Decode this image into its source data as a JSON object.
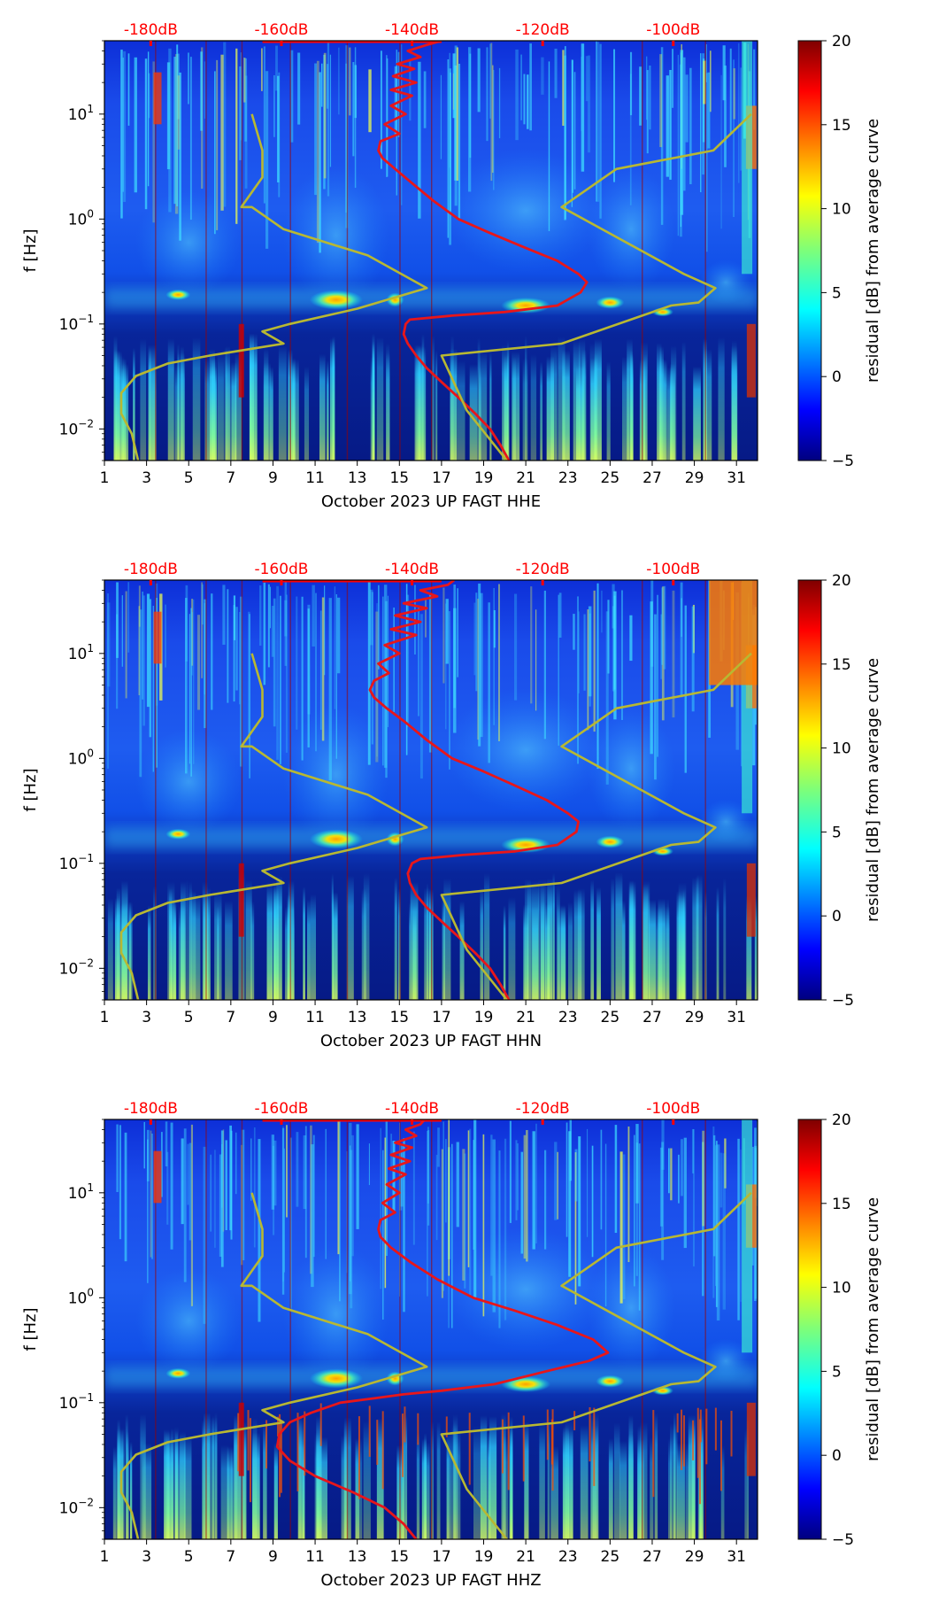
{
  "chart_data": [
    {
      "type": "heatmap",
      "xlabel": "October 2023 UP FAGT  HHE",
      "ylabel": "f [Hz]",
      "x_ticks": [
        "1",
        "3",
        "5",
        "7",
        "9",
        "11",
        "13",
        "15",
        "17",
        "19",
        "21",
        "23",
        "25",
        "27",
        "29",
        "31"
      ],
      "y_ticks": [
        "10^-2",
        "10^-1",
        "10^0",
        "10^1"
      ],
      "xlim": [
        1,
        32
      ],
      "ylim": [
        0.005,
        50
      ],
      "y_scale": "log",
      "top_axis_ticks": [
        "-180dB",
        "-160dB",
        "-140dB",
        "-120dB",
        "-100dB"
      ],
      "top_axis_color": "#ff0000",
      "colorbar": {
        "label": "residual [dB] from average curve",
        "ticks": [
          "20",
          "15",
          "10",
          "5",
          "0",
          "−5"
        ],
        "range": [
          -5,
          20
        ],
        "colormap": "jet"
      },
      "series": [
        {
          "color": "#e8161a",
          "x": [
            20.2,
            19.8,
            19.3,
            18.6,
            17.8,
            17.0,
            16.3,
            15.8,
            15.4,
            15.2,
            15.3,
            15.5,
            17.5,
            20.0,
            22.5,
            23.6,
            23.9,
            23.5,
            22.5,
            20.8,
            19.2,
            17.8,
            16.6,
            15.6,
            14.8,
            14.2,
            14.0,
            14.1,
            15.0,
            14.3,
            15.3,
            14.6,
            15.6,
            14.6,
            15.8,
            14.7,
            15.7,
            14.9,
            16.0,
            15.4,
            16.2,
            17.0
          ],
          "y": [
            0.005,
            0.007,
            0.01,
            0.014,
            0.02,
            0.028,
            0.038,
            0.05,
            0.065,
            0.08,
            0.1,
            0.11,
            0.12,
            0.13,
            0.15,
            0.2,
            0.25,
            0.3,
            0.4,
            0.55,
            0.75,
            1.0,
            1.5,
            2.2,
            3.0,
            3.8,
            4.5,
            5.5,
            6.5,
            8.0,
            10.0,
            12.0,
            15.0,
            17.0,
            20.0,
            23.0,
            27.0,
            30.0,
            35.0,
            40.0,
            45.0,
            50.0
          ]
        },
        {
          "color": "#b8b832",
          "x": [
            2.6,
            2.3,
            1.8,
            1.8,
            2.5,
            4.0,
            6.0,
            9.5,
            8.5,
            9.8,
            13.0,
            16.3,
            13.5,
            9.5,
            8.0,
            7.5,
            8.5,
            8.5,
            8.0,
            20.1,
            18.2,
            17.0,
            22.7,
            27.9,
            29.2,
            30.0,
            28.5,
            22.7,
            25.3,
            29.9,
            31.7
          ],
          "y": [
            0.005,
            0.009,
            0.014,
            0.022,
            0.032,
            0.042,
            0.05,
            0.065,
            0.085,
            0.1,
            0.14,
            0.22,
            0.45,
            0.8,
            1.3,
            1.3,
            2.5,
            4.5,
            10.0,
            0.005,
            0.015,
            0.05,
            0.065,
            0.15,
            0.16,
            0.22,
            0.3,
            1.3,
            3.0,
            4.5,
            10.0
          ]
        }
      ]
    },
    {
      "type": "heatmap",
      "xlabel": "October 2023 UP FAGT  HHN",
      "ylabel": "f [Hz]",
      "x_ticks": [
        "1",
        "3",
        "5",
        "7",
        "9",
        "11",
        "13",
        "15",
        "17",
        "19",
        "21",
        "23",
        "25",
        "27",
        "29",
        "31"
      ],
      "y_ticks": [
        "10^-2",
        "10^-1",
        "10^0",
        "10^1"
      ],
      "xlim": [
        1,
        32
      ],
      "ylim": [
        0.005,
        50
      ],
      "y_scale": "log",
      "top_axis_ticks": [
        "-180dB",
        "-160dB",
        "-140dB",
        "-120dB",
        "-100dB"
      ],
      "top_axis_color": "#ff0000",
      "colorbar": {
        "label": "residual [dB] from average curve",
        "ticks": [
          "20",
          "15",
          "10",
          "5",
          "0",
          "−5"
        ],
        "range": [
          -5,
          20
        ],
        "colormap": "jet"
      },
      "series": [
        {
          "color": "#e8161a",
          "x": [
            20.2,
            19.8,
            19.3,
            18.6,
            17.8,
            17.0,
            16.3,
            15.8,
            15.5,
            15.4,
            15.6,
            16.0,
            18.0,
            20.5,
            22.5,
            23.4,
            23.5,
            23.0,
            22.0,
            20.5,
            19.0,
            17.5,
            16.3,
            15.3,
            14.4,
            13.8,
            13.6,
            13.8,
            14.5,
            14.0,
            15.0,
            14.3,
            15.8,
            14.6,
            16.0,
            14.8,
            16.3,
            15.2,
            16.8,
            16.0,
            17.3,
            17.6
          ],
          "y": [
            0.005,
            0.007,
            0.01,
            0.014,
            0.02,
            0.028,
            0.038,
            0.05,
            0.065,
            0.08,
            0.1,
            0.11,
            0.12,
            0.13,
            0.15,
            0.2,
            0.25,
            0.3,
            0.4,
            0.55,
            0.75,
            1.0,
            1.5,
            2.2,
            3.0,
            3.8,
            4.5,
            5.5,
            6.5,
            8.0,
            10.0,
            12.0,
            15.0,
            17.0,
            20.0,
            23.0,
            27.0,
            30.0,
            35.0,
            40.0,
            45.0,
            50.0
          ]
        },
        {
          "color": "#b8b832",
          "x": [
            2.6,
            2.3,
            1.8,
            1.8,
            2.5,
            4.0,
            6.0,
            9.5,
            8.5,
            9.8,
            13.0,
            16.3,
            13.5,
            9.5,
            8.0,
            7.5,
            8.5,
            8.5,
            8.0,
            20.1,
            18.2,
            17.0,
            22.7,
            27.9,
            29.2,
            30.0,
            28.5,
            22.7,
            25.3,
            29.9,
            31.7
          ],
          "y": [
            0.005,
            0.009,
            0.014,
            0.022,
            0.032,
            0.042,
            0.05,
            0.065,
            0.085,
            0.1,
            0.14,
            0.22,
            0.45,
            0.8,
            1.3,
            1.3,
            2.5,
            4.5,
            10.0,
            0.005,
            0.015,
            0.05,
            0.065,
            0.15,
            0.16,
            0.22,
            0.3,
            1.3,
            3.0,
            4.5,
            10.0
          ]
        }
      ]
    },
    {
      "type": "heatmap",
      "xlabel": "October 2023 UP FAGT  HHZ",
      "ylabel": "f [Hz]",
      "x_ticks": [
        "1",
        "3",
        "5",
        "7",
        "9",
        "11",
        "13",
        "15",
        "17",
        "19",
        "21",
        "23",
        "25",
        "27",
        "29",
        "31"
      ],
      "y_ticks": [
        "10^-2",
        "10^-1",
        "10^0",
        "10^1"
      ],
      "xlim": [
        1,
        32
      ],
      "ylim": [
        0.005,
        50
      ],
      "y_scale": "log",
      "top_axis_ticks": [
        "-180dB",
        "-160dB",
        "-140dB",
        "-120dB",
        "-100dB"
      ],
      "top_axis_color": "#ff0000",
      "colorbar": {
        "label": "residual [dB] from average curve",
        "ticks": [
          "20",
          "15",
          "10",
          "5",
          "0",
          "−5"
        ],
        "range": [
          -5,
          20
        ],
        "colormap": "jet"
      },
      "series": [
        {
          "color": "#e8161a",
          "x": [
            15.8,
            15.2,
            14.3,
            12.8,
            11.0,
            9.8,
            9.2,
            9.3,
            9.8,
            10.8,
            12.2,
            13.8,
            15.2,
            17.0,
            19.5,
            22.0,
            24.0,
            24.9,
            24.2,
            22.5,
            20.5,
            18.5,
            16.8,
            15.5,
            14.6,
            14.1,
            14.0,
            14.1,
            14.8,
            14.2,
            15.0,
            14.4,
            15.3,
            14.5,
            15.5,
            14.6,
            15.6,
            14.8,
            15.8,
            15.3,
            16.0,
            16.2
          ],
          "y": [
            0.005,
            0.007,
            0.01,
            0.014,
            0.02,
            0.028,
            0.038,
            0.05,
            0.065,
            0.08,
            0.1,
            0.11,
            0.12,
            0.13,
            0.15,
            0.2,
            0.25,
            0.3,
            0.4,
            0.55,
            0.75,
            1.0,
            1.5,
            2.2,
            3.0,
            3.8,
            4.5,
            5.5,
            6.5,
            8.0,
            10.0,
            12.0,
            15.0,
            17.0,
            20.0,
            23.0,
            27.0,
            30.0,
            35.0,
            40.0,
            45.0,
            50.0
          ]
        },
        {
          "color": "#b8b832",
          "x": [
            2.6,
            2.3,
            1.8,
            1.8,
            2.5,
            4.0,
            6.0,
            9.5,
            8.5,
            9.8,
            13.0,
            16.3,
            13.5,
            9.5,
            8.0,
            7.5,
            8.5,
            8.5,
            8.0,
            20.1,
            18.2,
            17.0,
            22.7,
            27.9,
            29.2,
            30.0,
            28.5,
            22.7,
            25.3,
            29.9,
            31.7
          ],
          "y": [
            0.005,
            0.009,
            0.014,
            0.022,
            0.032,
            0.042,
            0.05,
            0.065,
            0.085,
            0.1,
            0.14,
            0.22,
            0.45,
            0.8,
            1.3,
            1.3,
            2.5,
            4.5,
            10.0,
            0.005,
            0.015,
            0.05,
            0.065,
            0.15,
            0.16,
            0.22,
            0.3,
            1.3,
            3.0,
            4.5,
            10.0
          ]
        }
      ]
    }
  ]
}
